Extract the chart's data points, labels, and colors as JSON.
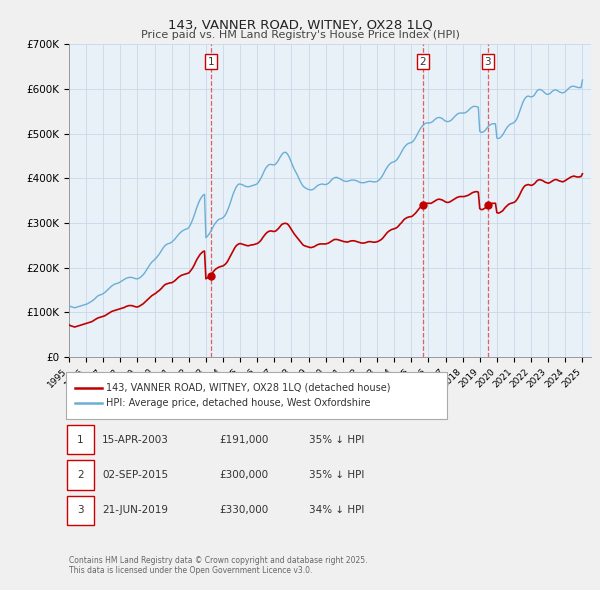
{
  "title": "143, VANNER ROAD, WITNEY, OX28 1LQ",
  "subtitle": "Price paid vs. HM Land Registry's House Price Index (HPI)",
  "legend_line1": "143, VANNER ROAD, WITNEY, OX28 1LQ (detached house)",
  "legend_line2": "HPI: Average price, detached house, West Oxfordshire",
  "footer1": "Contains HM Land Registry data © Crown copyright and database right 2025.",
  "footer2": "This data is licensed under the Open Government Licence v3.0.",
  "transactions": [
    {
      "num": 1,
      "date": "15-APR-2003",
      "price": "£191,000",
      "pct": "35% ↓ HPI",
      "year": 2003.29
    },
    {
      "num": 2,
      "date": "02-SEP-2015",
      "price": "£300,000",
      "pct": "35% ↓ HPI",
      "year": 2015.67
    },
    {
      "num": 3,
      "date": "21-JUN-2019",
      "price": "£330,000",
      "pct": "34% ↓ HPI",
      "year": 2019.47
    }
  ],
  "hpi_color": "#6aaed6",
  "price_color": "#c00000",
  "vline_color": "#e06060",
  "bg_color": "#f0f0f0",
  "plot_bg": "#e8f0f8",
  "grid_color": "#c8d8e8",
  "ylim": [
    0,
    700000
  ],
  "xlim_start": 1995.0,
  "xlim_end": 2025.5,
  "yticks": [
    0,
    100000,
    200000,
    300000,
    400000,
    500000,
    600000,
    700000
  ],
  "ytick_labels": [
    "£0",
    "£100K",
    "£200K",
    "£300K",
    "£400K",
    "£500K",
    "£600K",
    "£700K"
  ],
  "hpi_data_years": [
    1995.0,
    1995.083,
    1995.167,
    1995.25,
    1995.333,
    1995.417,
    1995.5,
    1995.583,
    1995.667,
    1995.75,
    1995.833,
    1995.917,
    1996.0,
    1996.083,
    1996.167,
    1996.25,
    1996.333,
    1996.417,
    1996.5,
    1996.583,
    1996.667,
    1996.75,
    1996.833,
    1996.917,
    1997.0,
    1997.083,
    1997.167,
    1997.25,
    1997.333,
    1997.417,
    1997.5,
    1997.583,
    1997.667,
    1997.75,
    1997.833,
    1997.917,
    1998.0,
    1998.083,
    1998.167,
    1998.25,
    1998.333,
    1998.417,
    1998.5,
    1998.583,
    1998.667,
    1998.75,
    1998.833,
    1998.917,
    1999.0,
    1999.083,
    1999.167,
    1999.25,
    1999.333,
    1999.417,
    1999.5,
    1999.583,
    1999.667,
    1999.75,
    1999.833,
    1999.917,
    2000.0,
    2000.083,
    2000.167,
    2000.25,
    2000.333,
    2000.417,
    2000.5,
    2000.583,
    2000.667,
    2000.75,
    2000.833,
    2000.917,
    2001.0,
    2001.083,
    2001.167,
    2001.25,
    2001.333,
    2001.417,
    2001.5,
    2001.583,
    2001.667,
    2001.75,
    2001.833,
    2001.917,
    2002.0,
    2002.083,
    2002.167,
    2002.25,
    2002.333,
    2002.417,
    2002.5,
    2002.583,
    2002.667,
    2002.75,
    2002.833,
    2002.917,
    2003.0,
    2003.083,
    2003.167,
    2003.25,
    2003.333,
    2003.417,
    2003.5,
    2003.583,
    2003.667,
    2003.75,
    2003.833,
    2003.917,
    2004.0,
    2004.083,
    2004.167,
    2004.25,
    2004.333,
    2004.417,
    2004.5,
    2004.583,
    2004.667,
    2004.75,
    2004.833,
    2004.917,
    2005.0,
    2005.083,
    2005.167,
    2005.25,
    2005.333,
    2005.417,
    2005.5,
    2005.583,
    2005.667,
    2005.75,
    2005.833,
    2005.917,
    2006.0,
    2006.083,
    2006.167,
    2006.25,
    2006.333,
    2006.417,
    2006.5,
    2006.583,
    2006.667,
    2006.75,
    2006.833,
    2006.917,
    2007.0,
    2007.083,
    2007.167,
    2007.25,
    2007.333,
    2007.417,
    2007.5,
    2007.583,
    2007.667,
    2007.75,
    2007.833,
    2007.917,
    2008.0,
    2008.083,
    2008.167,
    2008.25,
    2008.333,
    2008.417,
    2008.5,
    2008.583,
    2008.667,
    2008.75,
    2008.833,
    2008.917,
    2009.0,
    2009.083,
    2009.167,
    2009.25,
    2009.333,
    2009.417,
    2009.5,
    2009.583,
    2009.667,
    2009.75,
    2009.833,
    2009.917,
    2010.0,
    2010.083,
    2010.167,
    2010.25,
    2010.333,
    2010.417,
    2010.5,
    2010.583,
    2010.667,
    2010.75,
    2010.833,
    2010.917,
    2011.0,
    2011.083,
    2011.167,
    2011.25,
    2011.333,
    2011.417,
    2011.5,
    2011.583,
    2011.667,
    2011.75,
    2011.833,
    2011.917,
    2012.0,
    2012.083,
    2012.167,
    2012.25,
    2012.333,
    2012.417,
    2012.5,
    2012.583,
    2012.667,
    2012.75,
    2012.833,
    2012.917,
    2013.0,
    2013.083,
    2013.167,
    2013.25,
    2013.333,
    2013.417,
    2013.5,
    2013.583,
    2013.667,
    2013.75,
    2013.833,
    2013.917,
    2014.0,
    2014.083,
    2014.167,
    2014.25,
    2014.333,
    2014.417,
    2014.5,
    2014.583,
    2014.667,
    2014.75,
    2014.833,
    2014.917,
    2015.0,
    2015.083,
    2015.167,
    2015.25,
    2015.333,
    2015.417,
    2015.5,
    2015.583,
    2015.667,
    2015.75,
    2015.833,
    2015.917,
    2016.0,
    2016.083,
    2016.167,
    2016.25,
    2016.333,
    2016.417,
    2016.5,
    2016.583,
    2016.667,
    2016.75,
    2016.833,
    2016.917,
    2017.0,
    2017.083,
    2017.167,
    2017.25,
    2017.333,
    2017.417,
    2017.5,
    2017.583,
    2017.667,
    2017.75,
    2017.833,
    2017.917,
    2018.0,
    2018.083,
    2018.167,
    2018.25,
    2018.333,
    2018.417,
    2018.5,
    2018.583,
    2018.667,
    2018.75,
    2018.833,
    2018.917,
    2019.0,
    2019.083,
    2019.167,
    2019.25,
    2019.333,
    2019.417,
    2019.5,
    2019.583,
    2019.667,
    2019.75,
    2019.833,
    2019.917,
    2020.0,
    2020.083,
    2020.167,
    2020.25,
    2020.333,
    2020.417,
    2020.5,
    2020.583,
    2020.667,
    2020.75,
    2020.833,
    2020.917,
    2021.0,
    2021.083,
    2021.167,
    2021.25,
    2021.333,
    2021.417,
    2021.5,
    2021.583,
    2021.667,
    2021.75,
    2021.833,
    2021.917,
    2022.0,
    2022.083,
    2022.167,
    2022.25,
    2022.333,
    2022.417,
    2022.5,
    2022.583,
    2022.667,
    2022.75,
    2022.833,
    2022.917,
    2023.0,
    2023.083,
    2023.167,
    2023.25,
    2023.333,
    2023.417,
    2023.5,
    2023.583,
    2023.667,
    2023.75,
    2023.833,
    2023.917,
    2024.0,
    2024.083,
    2024.167,
    2024.25,
    2024.333,
    2024.417,
    2024.5,
    2024.583,
    2024.667,
    2024.75,
    2024.833,
    2024.917,
    2025.0
  ],
  "hpi_data_values": [
    115000,
    113000,
    112000,
    111000,
    110000,
    111000,
    112000,
    113000,
    114000,
    115000,
    116000,
    117000,
    118000,
    119000,
    121000,
    123000,
    125000,
    127000,
    130000,
    133000,
    136000,
    138000,
    139000,
    140000,
    142000,
    144000,
    147000,
    150000,
    153000,
    156000,
    159000,
    161000,
    163000,
    164000,
    165000,
    166000,
    168000,
    170000,
    172000,
    174000,
    176000,
    177000,
    178000,
    178000,
    178000,
    177000,
    176000,
    175000,
    175000,
    176000,
    178000,
    181000,
    184000,
    188000,
    193000,
    198000,
    203000,
    208000,
    212000,
    215000,
    218000,
    221000,
    225000,
    229000,
    234000,
    239000,
    244000,
    248000,
    251000,
    253000,
    254000,
    255000,
    257000,
    260000,
    263000,
    267000,
    271000,
    275000,
    278000,
    281000,
    283000,
    285000,
    286000,
    287000,
    290000,
    295000,
    302000,
    310000,
    319000,
    329000,
    338000,
    346000,
    353000,
    358000,
    362000,
    364000,
    267000,
    270000,
    274000,
    279000,
    285000,
    291000,
    297000,
    301000,
    305000,
    308000,
    309000,
    310000,
    312000,
    315000,
    320000,
    327000,
    335000,
    344000,
    354000,
    364000,
    372000,
    379000,
    384000,
    387000,
    387000,
    386000,
    385000,
    383000,
    382000,
    381000,
    381000,
    382000,
    383000,
    384000,
    385000,
    386000,
    388000,
    392000,
    397000,
    403000,
    410000,
    417000,
    423000,
    427000,
    430000,
    431000,
    431000,
    430000,
    430000,
    432000,
    436000,
    441000,
    447000,
    452000,
    456000,
    458000,
    458000,
    455000,
    450000,
    443000,
    435000,
    427000,
    420000,
    414000,
    408000,
    401000,
    394000,
    388000,
    383000,
    380000,
    378000,
    376000,
    375000,
    374000,
    374000,
    375000,
    377000,
    380000,
    383000,
    385000,
    386000,
    387000,
    387000,
    386000,
    386000,
    387000,
    389000,
    392000,
    396000,
    399000,
    401000,
    402000,
    402000,
    400000,
    399000,
    397000,
    395000,
    394000,
    393000,
    393000,
    394000,
    395000,
    396000,
    396000,
    396000,
    395000,
    394000,
    392000,
    391000,
    390000,
    390000,
    390000,
    391000,
    392000,
    393000,
    393000,
    393000,
    392000,
    392000,
    392000,
    393000,
    395000,
    398000,
    402000,
    407000,
    413000,
    419000,
    424000,
    429000,
    432000,
    435000,
    436000,
    437000,
    439000,
    442000,
    447000,
    452000,
    458000,
    464000,
    469000,
    473000,
    476000,
    478000,
    479000,
    480000,
    482000,
    486000,
    491000,
    497000,
    503000,
    509000,
    514000,
    518000,
    521000,
    523000,
    524000,
    524000,
    524000,
    525000,
    527000,
    530000,
    533000,
    535000,
    536000,
    536000,
    535000,
    533000,
    530000,
    528000,
    527000,
    527000,
    528000,
    530000,
    533000,
    537000,
    540000,
    543000,
    545000,
    546000,
    546000,
    546000,
    546000,
    547000,
    549000,
    552000,
    555000,
    558000,
    560000,
    561000,
    561000,
    560000,
    559000,
    505000,
    503000,
    503000,
    505000,
    508000,
    512000,
    516000,
    519000,
    521000,
    522000,
    522000,
    522000,
    490000,
    489000,
    490000,
    493000,
    497000,
    502000,
    508000,
    513000,
    517000,
    520000,
    522000,
    523000,
    525000,
    528000,
    533000,
    541000,
    550000,
    559000,
    568000,
    575000,
    580000,
    583000,
    584000,
    583000,
    582000,
    583000,
    585000,
    590000,
    595000,
    598000,
    599000,
    598000,
    596000,
    593000,
    590000,
    588000,
    588000,
    589000,
    592000,
    595000,
    597000,
    598000,
    597000,
    595000,
    593000,
    592000,
    591000,
    592000,
    594000,
    597000,
    600000,
    603000,
    605000,
    606000,
    606000,
    605000,
    604000,
    603000,
    603000,
    603000,
    620000
  ],
  "price_data_years": [
    1995.0,
    1995.083,
    1995.167,
    1995.25,
    1995.333,
    1995.417,
    1995.5,
    1995.583,
    1995.667,
    1995.75,
    1995.833,
    1995.917,
    1996.0,
    1996.083,
    1996.167,
    1996.25,
    1996.333,
    1996.417,
    1996.5,
    1996.583,
    1996.667,
    1996.75,
    1996.833,
    1996.917,
    1997.0,
    1997.083,
    1997.167,
    1997.25,
    1997.333,
    1997.417,
    1997.5,
    1997.583,
    1997.667,
    1997.75,
    1997.833,
    1997.917,
    1998.0,
    1998.083,
    1998.167,
    1998.25,
    1998.333,
    1998.417,
    1998.5,
    1998.583,
    1998.667,
    1998.75,
    1998.833,
    1998.917,
    1999.0,
    1999.083,
    1999.167,
    1999.25,
    1999.333,
    1999.417,
    1999.5,
    1999.583,
    1999.667,
    1999.75,
    1999.833,
    1999.917,
    2000.0,
    2000.083,
    2000.167,
    2000.25,
    2000.333,
    2000.417,
    2000.5,
    2000.583,
    2000.667,
    2000.75,
    2000.833,
    2000.917,
    2001.0,
    2001.083,
    2001.167,
    2001.25,
    2001.333,
    2001.417,
    2001.5,
    2001.583,
    2001.667,
    2001.75,
    2001.833,
    2001.917,
    2002.0,
    2002.083,
    2002.167,
    2002.25,
    2002.333,
    2002.417,
    2002.5,
    2002.583,
    2002.667,
    2002.75,
    2002.833,
    2002.917,
    2003.0,
    2003.083,
    2003.167,
    2003.25,
    2003.333,
    2003.417,
    2003.5,
    2003.583,
    2003.667,
    2003.75,
    2003.833,
    2003.917,
    2004.0,
    2004.083,
    2004.167,
    2004.25,
    2004.333,
    2004.417,
    2004.5,
    2004.583,
    2004.667,
    2004.75,
    2004.833,
    2004.917,
    2005.0,
    2005.083,
    2005.167,
    2005.25,
    2005.333,
    2005.417,
    2005.5,
    2005.583,
    2005.667,
    2005.75,
    2005.833,
    2005.917,
    2006.0,
    2006.083,
    2006.167,
    2006.25,
    2006.333,
    2006.417,
    2006.5,
    2006.583,
    2006.667,
    2006.75,
    2006.833,
    2006.917,
    2007.0,
    2007.083,
    2007.167,
    2007.25,
    2007.333,
    2007.417,
    2007.5,
    2007.583,
    2007.667,
    2007.75,
    2007.833,
    2007.917,
    2008.0,
    2008.083,
    2008.167,
    2008.25,
    2008.333,
    2008.417,
    2008.5,
    2008.583,
    2008.667,
    2008.75,
    2008.833,
    2008.917,
    2009.0,
    2009.083,
    2009.167,
    2009.25,
    2009.333,
    2009.417,
    2009.5,
    2009.583,
    2009.667,
    2009.75,
    2009.833,
    2009.917,
    2010.0,
    2010.083,
    2010.167,
    2010.25,
    2010.333,
    2010.417,
    2010.5,
    2010.583,
    2010.667,
    2010.75,
    2010.833,
    2010.917,
    2011.0,
    2011.083,
    2011.167,
    2011.25,
    2011.333,
    2011.417,
    2011.5,
    2011.583,
    2011.667,
    2011.75,
    2011.833,
    2011.917,
    2012.0,
    2012.083,
    2012.167,
    2012.25,
    2012.333,
    2012.417,
    2012.5,
    2012.583,
    2012.667,
    2012.75,
    2012.833,
    2012.917,
    2013.0,
    2013.083,
    2013.167,
    2013.25,
    2013.333,
    2013.417,
    2013.5,
    2013.583,
    2013.667,
    2013.75,
    2013.833,
    2013.917,
    2014.0,
    2014.083,
    2014.167,
    2014.25,
    2014.333,
    2014.417,
    2014.5,
    2014.583,
    2014.667,
    2014.75,
    2014.833,
    2014.917,
    2015.0,
    2015.083,
    2015.167,
    2015.25,
    2015.333,
    2015.417,
    2015.5,
    2015.583,
    2015.667,
    2015.75,
    2015.833,
    2015.917,
    2016.0,
    2016.083,
    2016.167,
    2016.25,
    2016.333,
    2016.417,
    2016.5,
    2016.583,
    2016.667,
    2016.75,
    2016.833,
    2016.917,
    2017.0,
    2017.083,
    2017.167,
    2017.25,
    2017.333,
    2017.417,
    2017.5,
    2017.583,
    2017.667,
    2017.75,
    2017.833,
    2017.917,
    2018.0,
    2018.083,
    2018.167,
    2018.25,
    2018.333,
    2018.417,
    2018.5,
    2018.583,
    2018.667,
    2018.75,
    2018.833,
    2018.917,
    2019.0,
    2019.083,
    2019.167,
    2019.25,
    2019.333,
    2019.417,
    2019.5,
    2019.583,
    2019.667,
    2019.75,
    2019.833,
    2019.917,
    2020.0,
    2020.083,
    2020.167,
    2020.25,
    2020.333,
    2020.417,
    2020.5,
    2020.583,
    2020.667,
    2020.75,
    2020.833,
    2020.917,
    2021.0,
    2021.083,
    2021.167,
    2021.25,
    2021.333,
    2021.417,
    2021.5,
    2021.583,
    2021.667,
    2021.75,
    2021.833,
    2021.917,
    2022.0,
    2022.083,
    2022.167,
    2022.25,
    2022.333,
    2022.417,
    2022.5,
    2022.583,
    2022.667,
    2022.75,
    2022.833,
    2022.917,
    2023.0,
    2023.083,
    2023.167,
    2023.25,
    2023.333,
    2023.417,
    2023.5,
    2023.583,
    2023.667,
    2023.75,
    2023.833,
    2023.917,
    2024.0,
    2024.083,
    2024.167,
    2024.25,
    2024.333,
    2024.417,
    2024.5,
    2024.583,
    2024.667,
    2024.75,
    2024.833,
    2024.917,
    2025.0
  ],
  "price_data_values": [
    72000,
    70000,
    69000,
    68000,
    67000,
    68000,
    69000,
    70000,
    71000,
    72000,
    73000,
    74000,
    75000,
    76000,
    77000,
    78000,
    79000,
    81000,
    83000,
    85000,
    87000,
    88000,
    89000,
    90000,
    91000,
    92000,
    94000,
    96000,
    98000,
    100000,
    102000,
    103000,
    104000,
    105000,
    106000,
    107000,
    108000,
    109000,
    110000,
    111000,
    113000,
    114000,
    115000,
    115000,
    115000,
    114000,
    113000,
    112000,
    112000,
    113000,
    115000,
    117000,
    119000,
    122000,
    125000,
    128000,
    131000,
    134000,
    137000,
    139000,
    141000,
    143000,
    146000,
    148000,
    151000,
    154000,
    158000,
    161000,
    163000,
    164000,
    165000,
    166000,
    166000,
    168000,
    170000,
    173000,
    176000,
    179000,
    181000,
    183000,
    184000,
    185000,
    186000,
    187000,
    188000,
    192000,
    196000,
    201000,
    207000,
    214000,
    220000,
    225000,
    230000,
    233000,
    236000,
    237000,
    175000,
    177000,
    179000,
    182000,
    186000,
    190000,
    194000,
    197000,
    199000,
    201000,
    202000,
    203000,
    204000,
    206000,
    209000,
    213000,
    219000,
    225000,
    231000,
    237000,
    243000,
    248000,
    251000,
    253000,
    254000,
    253000,
    252000,
    251000,
    250000,
    249000,
    249000,
    250000,
    251000,
    251000,
    252000,
    253000,
    254000,
    256000,
    259000,
    263000,
    268000,
    272000,
    276000,
    279000,
    281000,
    282000,
    282000,
    281000,
    281000,
    282000,
    285000,
    288000,
    292000,
    296000,
    298000,
    299000,
    299000,
    298000,
    295000,
    290000,
    285000,
    280000,
    275000,
    271000,
    267000,
    263000,
    259000,
    255000,
    251000,
    249000,
    248000,
    247000,
    246000,
    245000,
    245000,
    246000,
    247000,
    249000,
    251000,
    252000,
    253000,
    253000,
    253000,
    253000,
    253000,
    254000,
    255000,
    257000,
    259000,
    261000,
    263000,
    263000,
    263000,
    262000,
    261000,
    260000,
    259000,
    258000,
    258000,
    257000,
    258000,
    259000,
    260000,
    260000,
    260000,
    259000,
    258000,
    257000,
    256000,
    255000,
    255000,
    255000,
    256000,
    257000,
    258000,
    258000,
    258000,
    257000,
    257000,
    257000,
    258000,
    259000,
    261000,
    263000,
    266000,
    270000,
    274000,
    278000,
    281000,
    283000,
    285000,
    286000,
    287000,
    288000,
    290000,
    293000,
    297000,
    300000,
    304000,
    308000,
    310000,
    312000,
    313000,
    314000,
    314000,
    316000,
    319000,
    322000,
    326000,
    330000,
    334000,
    337000,
    340000,
    342000,
    343000,
    344000,
    344000,
    344000,
    344000,
    346000,
    348000,
    350000,
    352000,
    353000,
    353000,
    352000,
    351000,
    349000,
    347000,
    346000,
    346000,
    347000,
    349000,
    351000,
    353000,
    355000,
    357000,
    358000,
    359000,
    359000,
    359000,
    359000,
    360000,
    361000,
    362000,
    364000,
    366000,
    368000,
    369000,
    370000,
    370000,
    369000,
    332000,
    330000,
    330000,
    332000,
    334000,
    337000,
    340000,
    342000,
    343000,
    344000,
    344000,
    344000,
    323000,
    322000,
    323000,
    325000,
    327000,
    331000,
    335000,
    338000,
    341000,
    343000,
    344000,
    345000,
    346000,
    348000,
    352000,
    357000,
    363000,
    370000,
    376000,
    381000,
    384000,
    385000,
    386000,
    385000,
    384000,
    385000,
    387000,
    390000,
    394000,
    396000,
    397000,
    396000,
    395000,
    393000,
    391000,
    390000,
    389000,
    390000,
    392000,
    394000,
    396000,
    397000,
    397000,
    395000,
    394000,
    393000,
    392000,
    393000,
    395000,
    397000,
    399000,
    401000,
    403000,
    404000,
    405000,
    404000,
    403000,
    403000,
    403000,
    404000,
    410000
  ]
}
